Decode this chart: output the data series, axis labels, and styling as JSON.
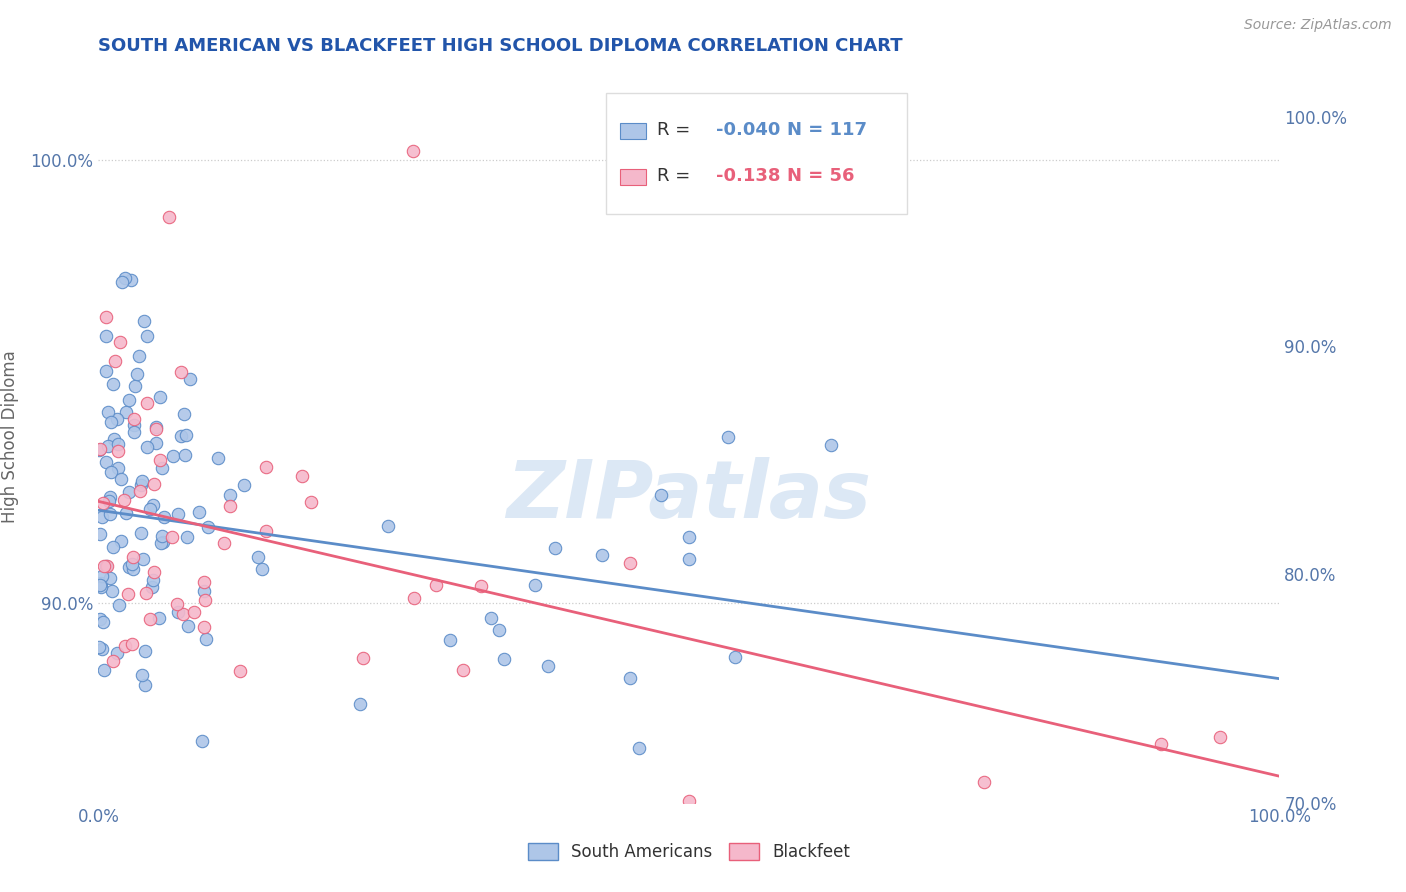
{
  "title": "SOUTH AMERICAN VS BLACKFEET HIGH SCHOOL DIPLOMA CORRELATION CHART",
  "source": "Source: ZipAtlas.com",
  "ylabel": "High School Diploma",
  "xlabel": "",
  "legend_labels": [
    "South Americans",
    "Blackfeet"
  ],
  "R_south_american": -0.04,
  "N_south_american": 117,
  "R_blackfeet": -0.138,
  "N_blackfeet": 56,
  "blue_color": "#aec6e8",
  "pink_color": "#f5b8cb",
  "blue_edge_color": "#5b8cc8",
  "pink_edge_color": "#e8607a",
  "blue_line_color": "#5b8cc8",
  "pink_line_color": "#e8607a",
  "watermark_color": "#dce8f5",
  "title_color": "#2255aa",
  "source_color": "#999999",
  "axis_color": "#5577aa",
  "background_color": "#ffffff",
  "grid_color": "#cccccc",
  "xlim": [
    0.0,
    1.0
  ],
  "ylim": [
    0.855,
    1.02
  ],
  "xtick_positions": [
    0.0,
    1.0
  ],
  "xtick_labels": [
    "0.0%",
    "100.0%"
  ],
  "ytick_values": [
    0.9,
    1.0
  ],
  "ytick_labels": [
    "90.0%",
    "100.0%"
  ],
  "ytick_right_values": [
    0.7,
    0.8,
    0.9,
    1.0
  ],
  "ytick_right_labels": [
    "70.0%",
    "80.0%",
    "90.0%",
    "100.0%"
  ],
  "blue_trend_start": 0.921,
  "blue_trend_end": 0.883,
  "pink_trend_start": 0.923,
  "pink_trend_end": 0.861,
  "marker_size": 80
}
